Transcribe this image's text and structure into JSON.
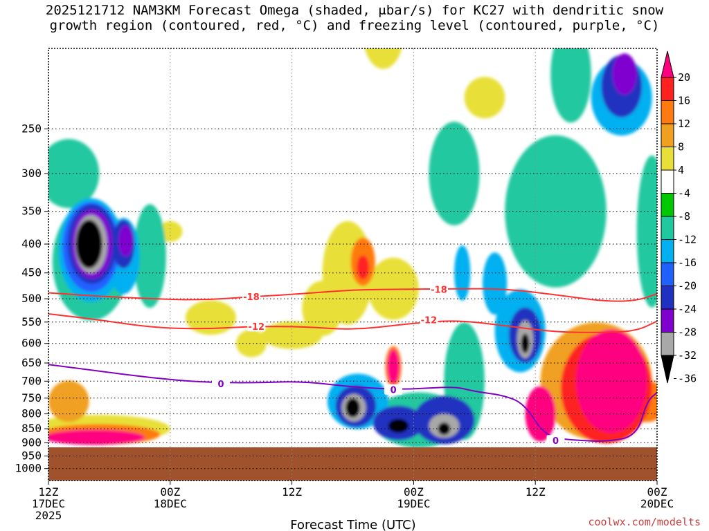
{
  "figure": {
    "title_line1": "2025121712 NAM3KM Forecast Omega (shaded, μbar/s) for KC27 with dendritic snow",
    "title_line2": "growth region (contoured, red, °C) and freezing level (contoured, purple, °C)",
    "xlabel": "Forecast Time (UTC)",
    "credit": "coolwx.com/modelts"
  },
  "chart_data": {
    "type": "heatmap",
    "x_axis": {
      "unit": "hours since 2025-12-17 12Z",
      "range": [
        0,
        60
      ],
      "ticks": [
        {
          "value": 0,
          "line1": "12Z",
          "line2": "17DEC",
          "line3": "2025"
        },
        {
          "value": 12,
          "line1": "00Z",
          "line2": "18DEC",
          "line3": ""
        },
        {
          "value": 24,
          "line1": "12Z",
          "line2": "",
          "line3": ""
        },
        {
          "value": 36,
          "line1": "00Z",
          "line2": "19DEC",
          "line3": ""
        },
        {
          "value": 48,
          "line1": "12Z",
          "line2": "",
          "line3": ""
        },
        {
          "value": 60,
          "line1": "00Z",
          "line2": "20DEC",
          "line3": ""
        }
      ]
    },
    "y_axis": {
      "unit": "hPa",
      "reversed": true,
      "range": [
        1050,
        180
      ],
      "ticks": [
        250,
        300,
        350,
        400,
        450,
        500,
        550,
        600,
        650,
        700,
        750,
        800,
        850,
        900,
        950,
        1000
      ],
      "grid": true
    },
    "colorbar": {
      "levels": [
        20,
        16,
        12,
        8,
        4,
        -4,
        -8,
        -12,
        -16,
        -20,
        -24,
        -28,
        -32,
        -36
      ],
      "colors": [
        "#ff0080",
        "#ff2020",
        "#ff7a10",
        "#f0a020",
        "#e8e038",
        "#ffffff",
        "#00c800",
        "#20c8a0",
        "#00b0f0",
        "#2060ff",
        "#2030c0",
        "#8000d0",
        "#a8a8a8",
        "#000000"
      ]
    },
    "ground": {
      "color": "#a0522d",
      "top_pressure": 917
    },
    "omega_features": [
      {
        "x": 4,
        "p": 400,
        "value": -45
      },
      {
        "x": 7.5,
        "p": 400,
        "value": -28
      },
      {
        "x": 30,
        "p": 780,
        "value": -40
      },
      {
        "x": 34,
        "p": 660,
        "value": 24
      },
      {
        "x": 34.5,
        "p": 840,
        "value": -40
      },
      {
        "x": 39,
        "p": 850,
        "value": -34
      },
      {
        "x": 47,
        "p": 590,
        "value": -38
      },
      {
        "x": 54,
        "p": 750,
        "value": 24
      },
      {
        "x": 56,
        "p": 550,
        "value": 22
      },
      {
        "x": 31,
        "p": 450,
        "value": 14
      },
      {
        "x": 57,
        "p": 250,
        "value": -28
      }
    ],
    "contours": [
      {
        "name": "-18",
        "color": "#ff3030",
        "labels": [
          {
            "x": 20,
            "p": 496,
            "text": "-18"
          },
          {
            "x": 38.5,
            "p": 481,
            "text": "-18"
          }
        ],
        "points": [
          [
            0,
            488
          ],
          [
            5,
            495
          ],
          [
            10,
            500
          ],
          [
            15,
            503
          ],
          [
            20,
            496
          ],
          [
            25,
            490
          ],
          [
            30,
            482
          ],
          [
            35,
            481
          ],
          [
            40,
            480
          ],
          [
            45,
            480
          ],
          [
            50,
            492
          ],
          [
            55,
            506
          ],
          [
            58,
            504
          ],
          [
            60,
            490
          ]
        ]
      },
      {
        "name": "-12",
        "color": "#ff3030",
        "labels": [
          {
            "x": 20.5,
            "p": 560,
            "text": "-12"
          },
          {
            "x": 37.5,
            "p": 545,
            "text": "-12"
          }
        ],
        "points": [
          [
            0,
            532
          ],
          [
            5,
            545
          ],
          [
            10,
            562
          ],
          [
            15,
            566
          ],
          [
            20,
            560
          ],
          [
            25,
            560
          ],
          [
            30,
            568
          ],
          [
            35,
            555
          ],
          [
            40,
            545
          ],
          [
            45,
            558
          ],
          [
            50,
            573
          ],
          [
            55,
            574
          ],
          [
            58,
            570
          ],
          [
            60,
            548
          ]
        ]
      },
      {
        "name": "0",
        "color": "#8000c0",
        "labels": [
          {
            "x": 17,
            "p": 707,
            "text": "0"
          },
          {
            "x": 34,
            "p": 725,
            "text": "0"
          },
          {
            "x": 50,
            "p": 892,
            "text": "0"
          }
        ],
        "points": [
          [
            0,
            654
          ],
          [
            5,
            672
          ],
          [
            10,
            690
          ],
          [
            15,
            703
          ],
          [
            20,
            705
          ],
          [
            25,
            700
          ],
          [
            30,
            717
          ],
          [
            35,
            725
          ],
          [
            40,
            715
          ],
          [
            42,
            730
          ],
          [
            45,
            742
          ],
          [
            47,
            770
          ],
          [
            49,
            880
          ],
          [
            52,
            891
          ],
          [
            55,
            896
          ],
          [
            58,
            876
          ],
          [
            59,
            760
          ],
          [
            60,
            733
          ]
        ]
      }
    ]
  }
}
